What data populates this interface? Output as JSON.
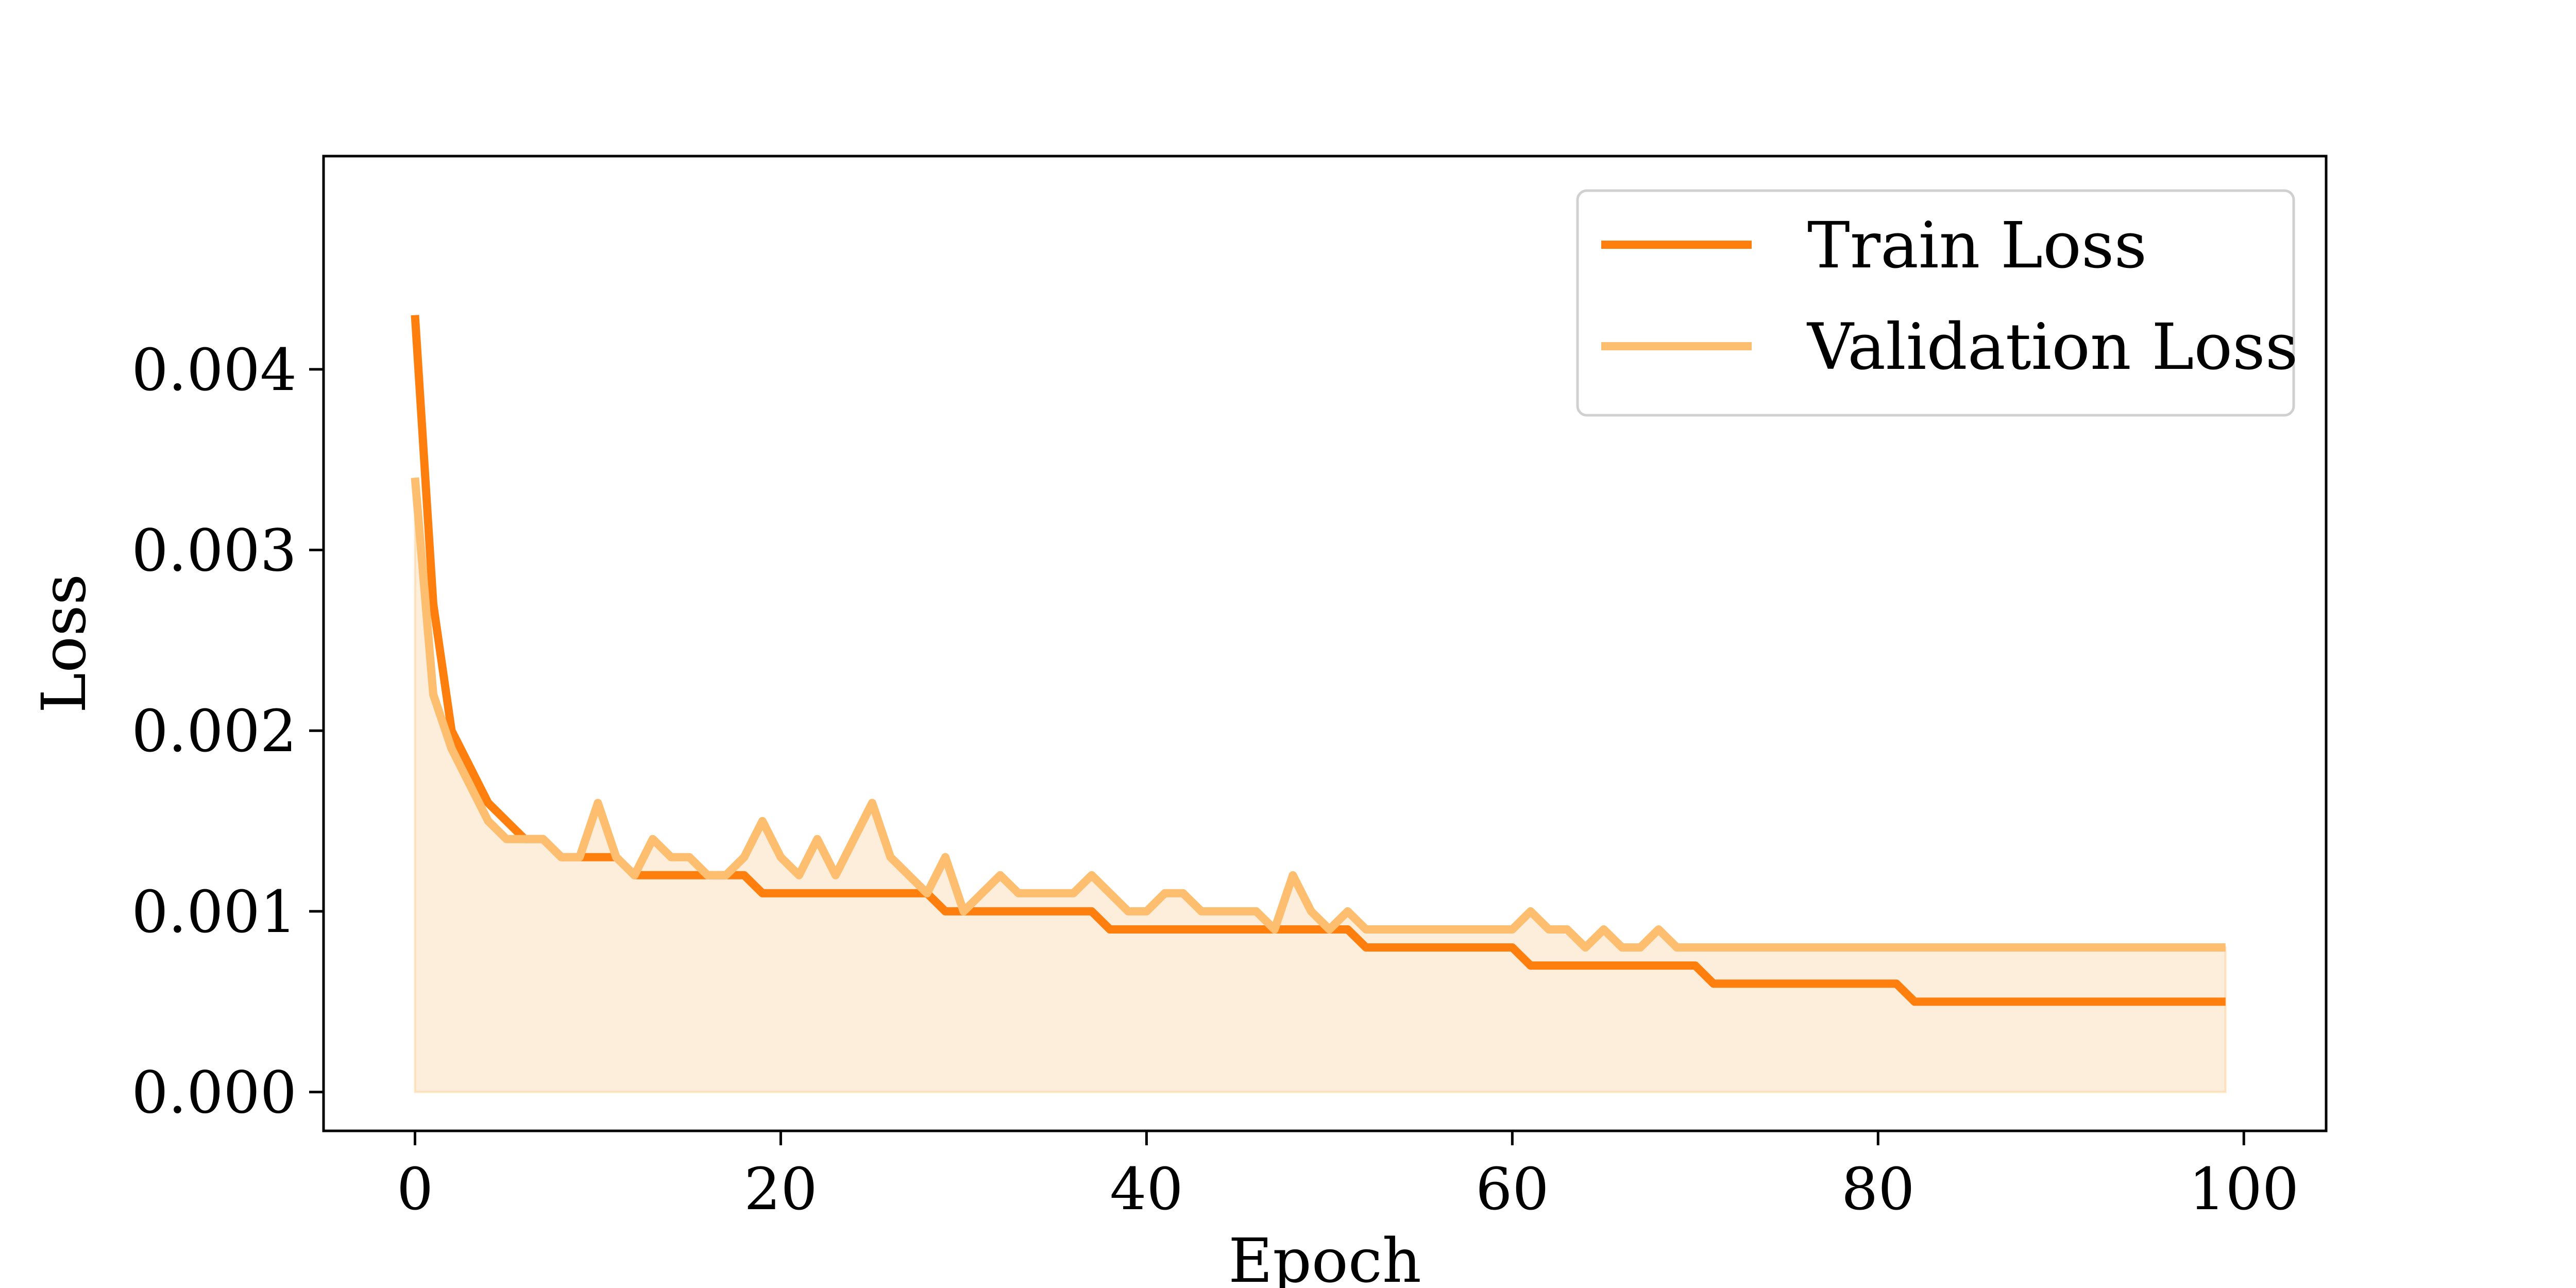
{
  "chart_data": {
    "type": "line",
    "xlabel": "Epoch",
    "ylabel": "Loss",
    "xlim": [
      -5,
      104.5
    ],
    "ylim": [
      -0.000215,
      0.00518
    ],
    "x_ticks": [
      0,
      20,
      40,
      60,
      80,
      100
    ],
    "y_ticks": [
      0.0,
      0.001,
      0.002,
      0.003,
      0.004
    ],
    "x_tick_labels": [
      "0",
      "20",
      "40",
      "60",
      "80",
      "100"
    ],
    "y_tick_labels": [
      "0.000",
      "0.001",
      "0.002",
      "0.003",
      "0.004"
    ],
    "grid": false,
    "legend_position": "top-right",
    "colors": {
      "train": "#ff7f0e",
      "validation": "#fdbf6f",
      "fill": "#fdebd7"
    },
    "series": [
      {
        "name": "Train Loss",
        "x": [
          0,
          1,
          2,
          3,
          4,
          5,
          6,
          7,
          8,
          9,
          10,
          11,
          12,
          13,
          14,
          15,
          16,
          17,
          18,
          19,
          20,
          21,
          22,
          23,
          24,
          25,
          26,
          27,
          28,
          29,
          30,
          31,
          32,
          33,
          34,
          35,
          36,
          37,
          38,
          39,
          40,
          41,
          42,
          43,
          44,
          45,
          46,
          47,
          48,
          49,
          50,
          51,
          52,
          53,
          54,
          55,
          56,
          57,
          58,
          59,
          60,
          61,
          62,
          63,
          64,
          65,
          66,
          67,
          68,
          69,
          70,
          71,
          72,
          73,
          74,
          75,
          76,
          77,
          78,
          79,
          80,
          81,
          82,
          83,
          84,
          85,
          86,
          87,
          88,
          89,
          90,
          91,
          92,
          93,
          94,
          95,
          96,
          97,
          98,
          99
        ],
        "values": [
          0.0043,
          0.0027,
          0.002,
          0.0018,
          0.0016,
          0.0015,
          0.0014,
          0.0014,
          0.0013,
          0.0013,
          0.0013,
          0.0013,
          0.0012,
          0.0012,
          0.0012,
          0.0012,
          0.0012,
          0.0012,
          0.0012,
          0.0011,
          0.0011,
          0.0011,
          0.0011,
          0.0011,
          0.0011,
          0.0011,
          0.0011,
          0.0011,
          0.0011,
          0.001,
          0.001,
          0.001,
          0.001,
          0.001,
          0.001,
          0.001,
          0.001,
          0.001,
          0.0009,
          0.0009,
          0.0009,
          0.0009,
          0.0009,
          0.0009,
          0.0009,
          0.0009,
          0.0009,
          0.0009,
          0.0009,
          0.0009,
          0.0009,
          0.0009,
          0.0008,
          0.0008,
          0.0008,
          0.0008,
          0.0008,
          0.0008,
          0.0008,
          0.0008,
          0.0008,
          0.0007,
          0.0007,
          0.0007,
          0.0007,
          0.0007,
          0.0007,
          0.0007,
          0.0007,
          0.0007,
          0.0007,
          0.0006,
          0.0006,
          0.0006,
          0.0006,
          0.0006,
          0.0006,
          0.0006,
          0.0006,
          0.0006,
          0.0006,
          0.0006,
          0.0005,
          0.0005,
          0.0005,
          0.0005,
          0.0005,
          0.0005,
          0.0005,
          0.0005,
          0.0005,
          0.0005,
          0.0005,
          0.0005,
          0.0005,
          0.0005,
          0.0005,
          0.0005,
          0.0005,
          0.0005
        ]
      },
      {
        "name": "Validation Loss",
        "x": [
          0,
          1,
          2,
          3,
          4,
          5,
          6,
          7,
          8,
          9,
          10,
          11,
          12,
          13,
          14,
          15,
          16,
          17,
          18,
          19,
          20,
          21,
          22,
          23,
          24,
          25,
          26,
          27,
          28,
          29,
          30,
          31,
          32,
          33,
          34,
          35,
          36,
          37,
          38,
          39,
          40,
          41,
          42,
          43,
          44,
          45,
          46,
          47,
          48,
          49,
          50,
          51,
          52,
          53,
          54,
          55,
          56,
          57,
          58,
          59,
          60,
          61,
          62,
          63,
          64,
          65,
          66,
          67,
          68,
          69,
          70,
          71,
          72,
          73,
          74,
          75,
          76,
          77,
          78,
          79,
          80,
          81,
          82,
          83,
          84,
          85,
          86,
          87,
          88,
          89,
          90,
          91,
          92,
          93,
          94,
          95,
          96,
          97,
          98,
          99
        ],
        "values": [
          0.0034,
          0.0022,
          0.0019,
          0.0017,
          0.0015,
          0.0014,
          0.0014,
          0.0014,
          0.0013,
          0.0013,
          0.0016,
          0.0013,
          0.0012,
          0.0014,
          0.0013,
          0.0013,
          0.0012,
          0.0012,
          0.0013,
          0.0015,
          0.0013,
          0.0012,
          0.0014,
          0.0012,
          0.0014,
          0.0016,
          0.0013,
          0.0012,
          0.0011,
          0.0013,
          0.001,
          0.0011,
          0.0012,
          0.0011,
          0.0011,
          0.0011,
          0.0011,
          0.0012,
          0.0011,
          0.001,
          0.001,
          0.0011,
          0.0011,
          0.001,
          0.001,
          0.001,
          0.001,
          0.0009,
          0.0012,
          0.001,
          0.0009,
          0.001,
          0.0009,
          0.0009,
          0.0009,
          0.0009,
          0.0009,
          0.0009,
          0.0009,
          0.0009,
          0.0009,
          0.001,
          0.0009,
          0.0009,
          0.0008,
          0.0009,
          0.0008,
          0.0008,
          0.0009,
          0.0008,
          0.0008,
          0.0008,
          0.0008,
          0.0008,
          0.0008,
          0.0008,
          0.0008,
          0.0008,
          0.0008,
          0.0008,
          0.0008,
          0.0008,
          0.0008,
          0.0008,
          0.0008,
          0.0008,
          0.0008,
          0.0008,
          0.0008,
          0.0008,
          0.0008,
          0.0008,
          0.0008,
          0.0008,
          0.0008,
          0.0008,
          0.0008,
          0.0008,
          0.0008,
          0.0008
        ]
      }
    ]
  }
}
